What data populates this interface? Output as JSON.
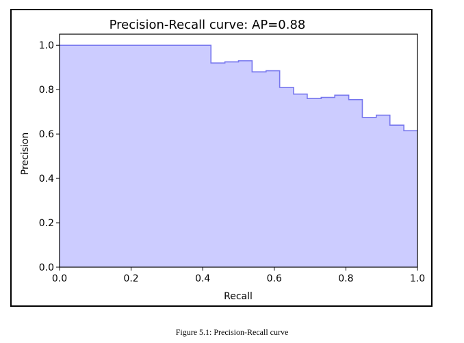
{
  "caption": "Figure 5.1: Precision-Recall curve",
  "colors": {
    "fill": "#ccccff",
    "line": "#7777ee",
    "axes": "#000000"
  },
  "chart_data": {
    "type": "area",
    "title": "Precision-Recall curve: AP=0.88",
    "xlabel": "Recall",
    "ylabel": "Precision",
    "xlim": [
      0.0,
      1.0
    ],
    "ylim": [
      0.0,
      1.05
    ],
    "xticks": [
      "0.0",
      "0.2",
      "0.4",
      "0.6",
      "0.8",
      "1.0"
    ],
    "yticks": [
      "0.0",
      "0.2",
      "0.4",
      "0.6",
      "0.8",
      "1.0"
    ],
    "step": "post",
    "grid": false,
    "series": [
      {
        "recall": [
          0.0,
          0.423,
          0.462,
          0.5,
          0.538,
          0.577,
          0.615,
          0.654,
          0.692,
          0.731,
          0.769,
          0.808,
          0.846,
          0.885,
          0.923,
          0.962,
          1.0
        ],
        "precision": [
          1.0,
          0.92,
          0.925,
          0.93,
          0.88,
          0.885,
          0.81,
          0.78,
          0.76,
          0.765,
          0.775,
          0.755,
          0.675,
          0.685,
          0.64,
          0.615,
          0.615
        ]
      }
    ]
  }
}
